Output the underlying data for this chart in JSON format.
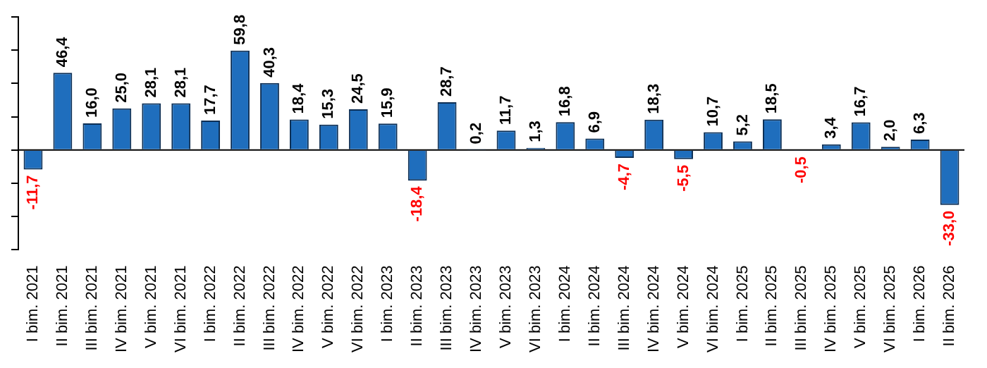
{
  "chart_data": {
    "type": "bar",
    "categories": [
      "I bim. 2021",
      "II bim. 2021",
      "III bim. 2021",
      "IV bim. 2021",
      "V bim. 2021",
      "VI bim. 2021",
      "I bim. 2022",
      "II bim. 2022",
      "III bim. 2022",
      "IV bim. 2022",
      "V bim. 2022",
      "VI bim. 2022",
      "I bim. 2023",
      "II bim. 2023",
      "III bim. 2023",
      "IV bim. 2023",
      "V bim. 2023",
      "VI bim. 2023",
      "I bim. 2024",
      "II bim. 2024",
      "III bim. 2024",
      "IV bim. 2024",
      "V bim. 2024",
      "VI bim. 2024",
      "I bim. 2025",
      "II bim. 2025",
      "III bim. 2025",
      "IV bim. 2025",
      "V bim. 2025",
      "VI bim. 2025",
      "I bim. 2026",
      "II bim. 2026"
    ],
    "values": [
      -11.7,
      46.4,
      16.0,
      25.0,
      28.1,
      28.1,
      17.7,
      59.8,
      40.3,
      18.4,
      15.3,
      24.5,
      15.9,
      -18.4,
      28.7,
      0.2,
      11.7,
      1.3,
      16.8,
      6.9,
      -4.7,
      18.3,
      -5.5,
      10.7,
      5.2,
      18.5,
      -0.5,
      3.4,
      16.7,
      2.0,
      6.3,
      -33.0
    ],
    "value_labels": [
      "-11,7",
      "46,4",
      "16,0",
      "25,0",
      "28,1",
      "28,1",
      "17,7",
      "59,8",
      "40,3",
      "18,4",
      "15,3",
      "24,5",
      "15,9",
      "-18,4",
      "28,7",
      "0,2",
      "11,7",
      "1,3",
      "16,8",
      "6,9",
      "-4,7",
      "18,3",
      "-5,5",
      "10,7",
      "5,2",
      "18,5",
      "-0,5",
      "3,4",
      "16,7",
      "2,0",
      "6,3",
      "-33,0"
    ],
    "color": "#1f6ebd",
    "ylim": [
      -60,
      80
    ],
    "yticks": [
      {
        "value": -60,
        "label": null
      },
      {
        "value": -40,
        "label": null
      },
      {
        "value": -20,
        "label": null
      },
      {
        "value": 0,
        "label": null
      },
      {
        "value": 20,
        "label": null
      },
      {
        "value": 40,
        "label": null
      },
      {
        "value": 60,
        "label": null
      },
      {
        "value": 80,
        "label": null
      }
    ],
    "tick_labels": "x",
    "grid": false,
    "legend": false
  }
}
